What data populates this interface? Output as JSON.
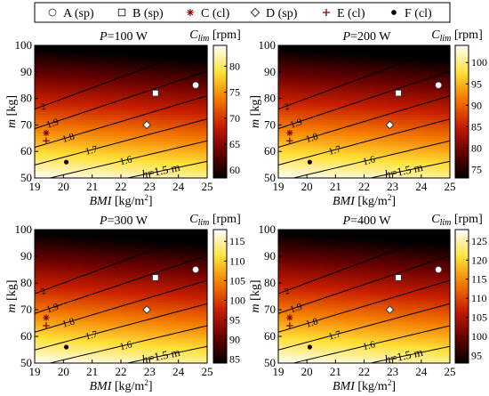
{
  "legend": {
    "entries": [
      {
        "key": "A",
        "label": "A (sp)",
        "marker": "circle"
      },
      {
        "key": "B",
        "label": "B (sp)",
        "marker": "square"
      },
      {
        "key": "C",
        "label": "C (cl)",
        "marker": "asterisk"
      },
      {
        "key": "D",
        "label": "D (sp)",
        "marker": "diamond"
      },
      {
        "key": "E",
        "label": "E (cl)",
        "marker": "plus"
      },
      {
        "key": "F",
        "label": "F (cl)",
        "marker": "dot"
      }
    ]
  },
  "colors": {
    "marker_white": "#ffffff",
    "marker_dark": "#8b0000",
    "contour": "#000000",
    "colormap": [
      "#000000",
      "#6a0000",
      "#c81e00",
      "#f47a00",
      "#ffe138",
      "#ffffff"
    ]
  },
  "chart_data": [
    {
      "type": "heatmap",
      "title": "P=100 W",
      "title_var": "P",
      "title_rest": "=100 W",
      "xlabel_var": "BMI",
      "xlabel_unit": " [kg/m",
      "xlabel_exp": "2",
      "xlabel_close": "]",
      "ylabel_var": "m",
      "ylabel_unit": " [kg]",
      "xlim": [
        19,
        25
      ],
      "ylim": [
        50,
        100
      ],
      "xticks": [
        19,
        20,
        21,
        22,
        23,
        24,
        25
      ],
      "yticks": [
        50,
        60,
        70,
        80,
        90,
        100
      ],
      "colorbar": {
        "label_main": "C",
        "label_sub": "lim",
        "label_unit": " [rpm]",
        "range": [
          58.5,
          84
        ],
        "ticks": [
          60,
          65,
          70,
          75,
          80
        ]
      },
      "contours": {
        "levels": [
          1.5,
          1.6,
          1.7,
          1.8,
          1.9,
          2.0
        ],
        "labels": [
          "h=1.5 m",
          "1.6",
          "1.7",
          "1.8",
          "1.9",
          "2"
        ]
      },
      "points": [
        {
          "key": "A",
          "bmi": 24.6,
          "mass": 85
        },
        {
          "key": "B",
          "bmi": 23.2,
          "mass": 82
        },
        {
          "key": "C",
          "bmi": 19.4,
          "mass": 67
        },
        {
          "key": "D",
          "bmi": 22.9,
          "mass": 70
        },
        {
          "key": "E",
          "bmi": 19.4,
          "mass": 64
        },
        {
          "key": "F",
          "bmi": 20.1,
          "mass": 56
        }
      ]
    },
    {
      "type": "heatmap",
      "title": "P=200 W",
      "title_var": "P",
      "title_rest": "=200 W",
      "xlabel_var": "BMI",
      "xlabel_unit": " [kg/m",
      "xlabel_exp": "2",
      "xlabel_close": "]",
      "ylabel_var": "m",
      "ylabel_unit": " [kg]",
      "xlim": [
        19,
        25
      ],
      "ylim": [
        50,
        100
      ],
      "xticks": [
        19,
        20,
        21,
        22,
        23,
        24,
        25
      ],
      "yticks": [
        50,
        60,
        70,
        80,
        90,
        100
      ],
      "colorbar": {
        "label_main": "C",
        "label_sub": "lim",
        "label_unit": " [rpm]",
        "range": [
          73,
          104
        ],
        "ticks": [
          75,
          80,
          85,
          90,
          95,
          100
        ]
      },
      "contours": {
        "levels": [
          1.5,
          1.6,
          1.7,
          1.8,
          1.9,
          2.0
        ],
        "labels": [
          "h=1.5 m",
          "1.6",
          "1.7",
          "1.8",
          "1.9",
          "2"
        ]
      },
      "points": [
        {
          "key": "A",
          "bmi": 24.6,
          "mass": 85
        },
        {
          "key": "B",
          "bmi": 23.2,
          "mass": 82
        },
        {
          "key": "C",
          "bmi": 19.4,
          "mass": 67
        },
        {
          "key": "D",
          "bmi": 22.9,
          "mass": 70
        },
        {
          "key": "E",
          "bmi": 19.4,
          "mass": 64
        },
        {
          "key": "F",
          "bmi": 20.1,
          "mass": 56
        }
      ]
    },
    {
      "type": "heatmap",
      "title": "P=300 W",
      "title_var": "P",
      "title_rest": "=300 W",
      "xlabel_var": "BMI",
      "xlabel_unit": " [kg/m",
      "xlabel_exp": "2",
      "xlabel_close": "]",
      "ylabel_var": "m",
      "ylabel_unit": " [kg]",
      "xlim": [
        19,
        25
      ],
      "ylim": [
        50,
        100
      ],
      "xticks": [
        19,
        20,
        21,
        22,
        23,
        24,
        25
      ],
      "yticks": [
        50,
        60,
        70,
        80,
        90,
        100
      ],
      "colorbar": {
        "label_main": "C",
        "label_sub": "lim",
        "label_unit": " [rpm]",
        "range": [
          84,
          118
        ],
        "ticks": [
          85,
          90,
          95,
          100,
          105,
          110,
          115
        ]
      },
      "contours": {
        "levels": [
          1.5,
          1.6,
          1.7,
          1.8,
          1.9,
          2.0
        ],
        "labels": [
          "h=1.5 m",
          "1.6",
          "1.7",
          "1.8",
          "1.9",
          "2"
        ]
      },
      "points": [
        {
          "key": "A",
          "bmi": 24.6,
          "mass": 85
        },
        {
          "key": "B",
          "bmi": 23.2,
          "mass": 82
        },
        {
          "key": "C",
          "bmi": 19.4,
          "mass": 67
        },
        {
          "key": "D",
          "bmi": 22.9,
          "mass": 70
        },
        {
          "key": "E",
          "bmi": 19.4,
          "mass": 64
        },
        {
          "key": "F",
          "bmi": 20.1,
          "mass": 56
        }
      ]
    },
    {
      "type": "heatmap",
      "title": "P=400 W",
      "title_var": "P",
      "title_rest": "=400 W",
      "xlabel_var": "BMI",
      "xlabel_unit": " [kg/m",
      "xlabel_exp": "2",
      "xlabel_close": "]",
      "ylabel_var": "m",
      "ylabel_unit": " [kg]",
      "xlim": [
        19,
        25
      ],
      "ylim": [
        50,
        100
      ],
      "xticks": [
        19,
        20,
        21,
        22,
        23,
        24,
        25
      ],
      "yticks": [
        50,
        60,
        70,
        80,
        90,
        100
      ],
      "colorbar": {
        "label_main": "C",
        "label_sub": "lim",
        "label_unit": " [rpm]",
        "range": [
          93,
          128
        ],
        "ticks": [
          95,
          100,
          105,
          110,
          115,
          120,
          125
        ]
      },
      "contours": {
        "levels": [
          1.5,
          1.6,
          1.7,
          1.8,
          1.9,
          2.0
        ],
        "labels": [
          "h=1.5 m",
          "1.6",
          "1.7",
          "1.8",
          "1.9",
          "2"
        ]
      },
      "points": [
        {
          "key": "A",
          "bmi": 24.6,
          "mass": 85
        },
        {
          "key": "B",
          "bmi": 23.2,
          "mass": 82
        },
        {
          "key": "C",
          "bmi": 19.4,
          "mass": 67
        },
        {
          "key": "D",
          "bmi": 22.9,
          "mass": 70
        },
        {
          "key": "E",
          "bmi": 19.4,
          "mass": 64
        },
        {
          "key": "F",
          "bmi": 20.1,
          "mass": 56
        }
      ]
    }
  ]
}
